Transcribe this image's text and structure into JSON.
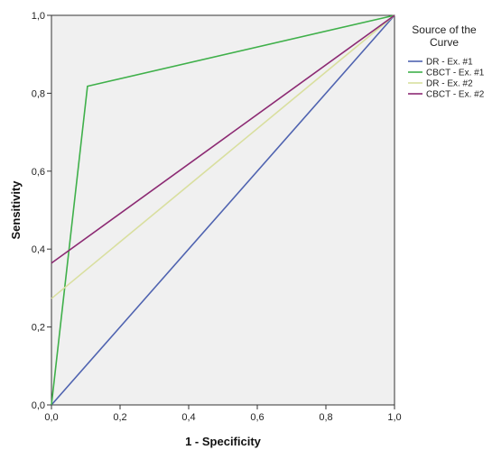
{
  "chart_data": {
    "type": "line",
    "xlabel": "1 - Specificity",
    "ylabel": "Sensitivity",
    "xlim": [
      0.0,
      1.0
    ],
    "ylim": [
      0.0,
      1.0
    ],
    "xticks": [
      "0,0",
      "0,2",
      "0,4",
      "0,6",
      "0,8",
      "1,0"
    ],
    "yticks": [
      "0,0",
      "0,2",
      "0,4",
      "0,6",
      "0,8",
      "1,0"
    ],
    "grid": false,
    "background_color": "#f0f0f0",
    "legend": {
      "title_lines": [
        "Source of the",
        "Curve"
      ],
      "position": "top-right, outside plot"
    },
    "series": [
      {
        "name": "DR - Ex. #1",
        "color": "#4f63b0",
        "points": [
          [
            0.0,
            0.0
          ],
          [
            1.0,
            1.0
          ]
        ]
      },
      {
        "name": "CBCT - Ex. #1",
        "color": "#3fb04a",
        "points": [
          [
            0.0,
            0.0
          ],
          [
            0.105,
            0.818
          ],
          [
            1.0,
            1.0
          ]
        ]
      },
      {
        "name": "DR - Ex. #2",
        "color": "#d9df9f",
        "points": [
          [
            0.0,
            0.273
          ],
          [
            1.0,
            1.0
          ]
        ]
      },
      {
        "name": "CBCT - Ex. #2",
        "color": "#8c2a73",
        "points": [
          [
            0.0,
            0.364
          ],
          [
            1.0,
            1.0
          ]
        ]
      }
    ]
  }
}
